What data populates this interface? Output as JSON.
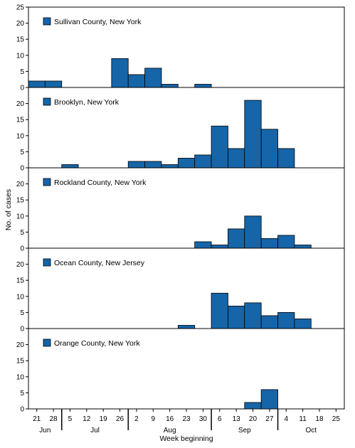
{
  "chart_data": {
    "type": "bar",
    "ylabel": "No. of cases",
    "xlabel": "Week beginning",
    "colors": {
      "bar": "#1565a8",
      "bar_edge": "#000000"
    },
    "weeks": [
      "21",
      "28",
      "5",
      "12",
      "19",
      "26",
      "2",
      "9",
      "16",
      "23",
      "30",
      "6",
      "13",
      "20",
      "27",
      "4",
      "11",
      "18",
      "25"
    ],
    "months": [
      "Jun",
      "Jul",
      "Aug",
      "Sep",
      "Oct"
    ],
    "ylim": [
      0,
      25
    ],
    "yticks_top": [
      0,
      5,
      10,
      15,
      20,
      25
    ],
    "yticks": [
      0,
      5,
      10,
      15,
      20
    ],
    "panels": [
      {
        "name": "Sullivan County, New York",
        "values": [
          2,
          2,
          0,
          0,
          0,
          9,
          4,
          6,
          1,
          0,
          1,
          0,
          0,
          0,
          0,
          0,
          0,
          0,
          0
        ]
      },
      {
        "name": "Brooklyn, New York",
        "values": [
          0,
          0,
          1,
          0,
          0,
          0,
          2,
          2,
          1,
          3,
          4,
          13,
          6,
          21,
          12,
          6,
          0,
          0,
          0
        ]
      },
      {
        "name": "Rockland County, New York",
        "values": [
          0,
          0,
          0,
          0,
          0,
          0,
          0,
          0,
          0,
          0,
          2,
          1,
          6,
          10,
          3,
          4,
          1,
          0,
          0
        ]
      },
      {
        "name": "Ocean County, New Jersey",
        "values": [
          0,
          0,
          0,
          0,
          0,
          0,
          0,
          0,
          0,
          1,
          0,
          11,
          7,
          8,
          4,
          5,
          3,
          0,
          0
        ]
      },
      {
        "name": "Orange County, New York",
        "values": [
          0,
          0,
          0,
          0,
          0,
          0,
          0,
          0,
          0,
          0,
          0,
          0,
          0,
          2,
          6,
          0,
          0,
          0,
          0
        ]
      }
    ]
  }
}
